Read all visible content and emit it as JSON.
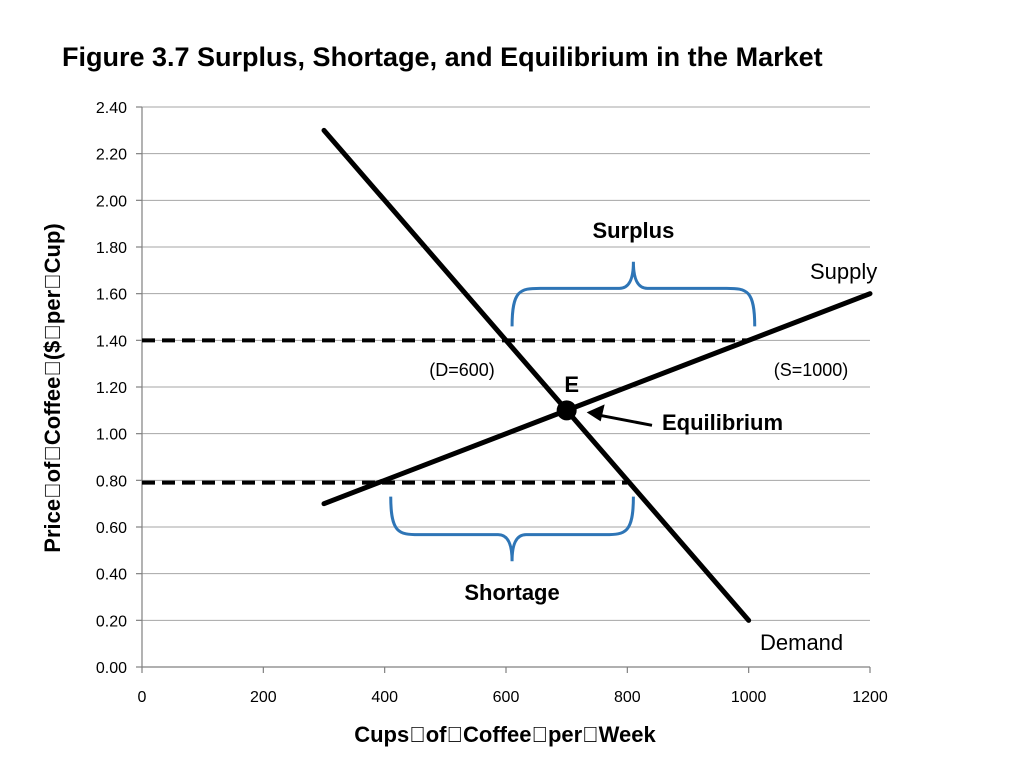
{
  "title": "Figure 3.7  Surplus, Shortage, and Equilibrium in the Market",
  "chart_data": {
    "type": "line",
    "title": "Figure 3.7  Surplus, Shortage, and Equilibrium in the Market",
    "xlabel": "Cups\u0000of\u0000Coffee\u0000per\u0000Week",
    "ylabel": "Price\u0000of\u0000Coffee\u0000($\u0000per\u0000Cup)",
    "xlim": [
      0,
      1200
    ],
    "ylim": [
      0,
      2.4
    ],
    "x_ticks": [
      "0",
      "200",
      "400",
      "600",
      "800",
      "1000",
      "1200"
    ],
    "y_ticks": [
      "0.00",
      "0.20",
      "0.40",
      "0.60",
      "0.80",
      "1.00",
      "1.20",
      "1.40",
      "1.60",
      "1.80",
      "2.00",
      "2.20",
      "2.40"
    ],
    "grid": "horizontal",
    "series": [
      {
        "name": "Supply",
        "color": "#000000",
        "points": [
          [
            300,
            0.7
          ],
          [
            1200,
            1.6
          ]
        ]
      },
      {
        "name": "Demand",
        "color": "#000000",
        "points": [
          [
            300,
            2.3
          ],
          [
            1000,
            0.2
          ]
        ]
      }
    ],
    "price_lines": [
      {
        "price": 1.4,
        "x_start": 0,
        "x_end": 1000,
        "style": "dashed"
      },
      {
        "price": 0.79,
        "x_start": 0,
        "x_end": 800,
        "style": "dashed"
      }
    ],
    "equilibrium": {
      "label": "E",
      "x": 700,
      "y": 1.1,
      "arrow_label": "Equilibrium"
    },
    "annotations": {
      "surplus": {
        "label": "Surplus",
        "x_start": 610,
        "x_end": 1010,
        "price": 1.4,
        "color": "#2e75b6"
      },
      "shortage": {
        "label": "Shortage",
        "x_start": 410,
        "x_end": 810,
        "price": 0.79,
        "color": "#2e75b6"
      },
      "demand_at_high_price": "(D=600)",
      "supply_at_high_price": "(S=1000)"
    }
  }
}
